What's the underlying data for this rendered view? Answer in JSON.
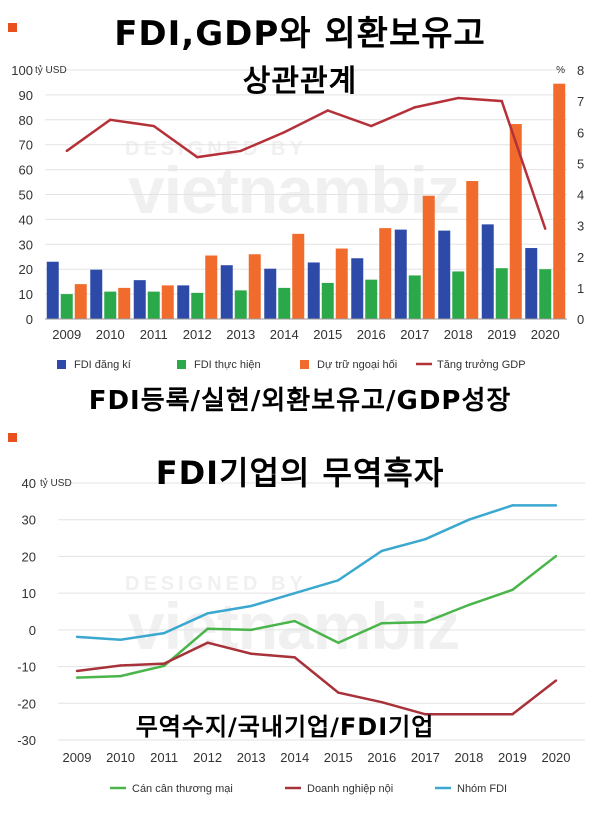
{
  "overlay": {
    "title1_line1": "FDI,GDP와 외환보유고",
    "title1_line2": "상관관계",
    "subtitle1": "FDI등록/실현/외환보유고/GDP성장",
    "title2": "FDI기업의 무역흑자",
    "subtitle2": "무역수지/국내기업/FDI기업"
  },
  "watermark": {
    "line1": "DESIGNED BY",
    "line2": "vietnambiz"
  },
  "colors": {
    "marker": "#e8501e",
    "fdi_registered": "#2d4aa8",
    "fdi_disbursed": "#2aa84a",
    "fx_reserves": "#f06b2c",
    "gdp_growth": "#b5313a",
    "trade_balance": "#49b54a",
    "domestic": "#a8323a",
    "fdi_group": "#3ba8d0"
  },
  "chart_data": [
    {
      "type": "bar",
      "left_unit": "tỷ USD",
      "right_unit": "%",
      "categories": [
        "2009",
        "2010",
        "2011",
        "2012",
        "2013",
        "2014",
        "2015",
        "2016",
        "2017",
        "2018",
        "2019",
        "2020"
      ],
      "ylim": [
        0,
        100
      ],
      "yticks": [
        0,
        10,
        20,
        30,
        40,
        50,
        60,
        70,
        80,
        90,
        100
      ],
      "y2lim": [
        0,
        8
      ],
      "y2ticks": [
        0,
        1,
        2,
        3,
        4,
        5,
        6,
        7,
        8
      ],
      "series": [
        {
          "name": "FDI đăng kí",
          "axis": "left",
          "values": [
            23,
            19.8,
            15.6,
            13.5,
            21.6,
            20.2,
            22.7,
            24.4,
            35.9,
            35.5,
            38,
            28.5
          ]
        },
        {
          "name": "FDI thực hiện",
          "axis": "left",
          "values": [
            10,
            11,
            11,
            10.5,
            11.5,
            12.5,
            14.5,
            15.8,
            17.5,
            19.1,
            20.4,
            20
          ]
        },
        {
          "name": "Dự trữ ngoại hối",
          "axis": "left",
          "values": [
            14,
            12.5,
            13.5,
            25.5,
            26,
            34.2,
            28.3,
            36.5,
            49.5,
            55.4,
            78.3,
            94.5
          ]
        },
        {
          "name": "Tăng trưởng GDP",
          "axis": "right",
          "type": "line",
          "values": [
            5.4,
            6.4,
            6.2,
            5.2,
            5.4,
            6.0,
            6.7,
            6.2,
            6.8,
            7.1,
            7.0,
            2.9
          ]
        }
      ],
      "grid": true,
      "legend": "bottom"
    },
    {
      "type": "line",
      "unit": "tỷ USD",
      "categories": [
        "2009",
        "2010",
        "2011",
        "2012",
        "2013",
        "2014",
        "2015",
        "2016",
        "2017",
        "2018",
        "2019",
        "2020"
      ],
      "ylim": [
        -30,
        40
      ],
      "yticks": [
        -30,
        -20,
        -10,
        0,
        10,
        20,
        30,
        40
      ],
      "series": [
        {
          "name": "Cán cân thương mại",
          "values": [
            -13,
            -12.6,
            -9.8,
            0.3,
            0,
            2.4,
            -3.5,
            1.8,
            2.1,
            6.8,
            10.9,
            20.1
          ]
        },
        {
          "name": "Doanh nghiệp nội",
          "values": [
            -11.2,
            -9.7,
            -9.2,
            -3.5,
            -6.5,
            -7.5,
            -17.1,
            -19.7,
            -23,
            -23,
            -23,
            -13.8
          ]
        },
        {
          "name": "Nhóm FDI",
          "values": [
            -1.9,
            -2.7,
            -0.9,
            4.5,
            6.5,
            10,
            13.5,
            21.5,
            24.7,
            30,
            33.9,
            33.9
          ]
        }
      ],
      "grid": true,
      "legend": "bottom"
    }
  ]
}
